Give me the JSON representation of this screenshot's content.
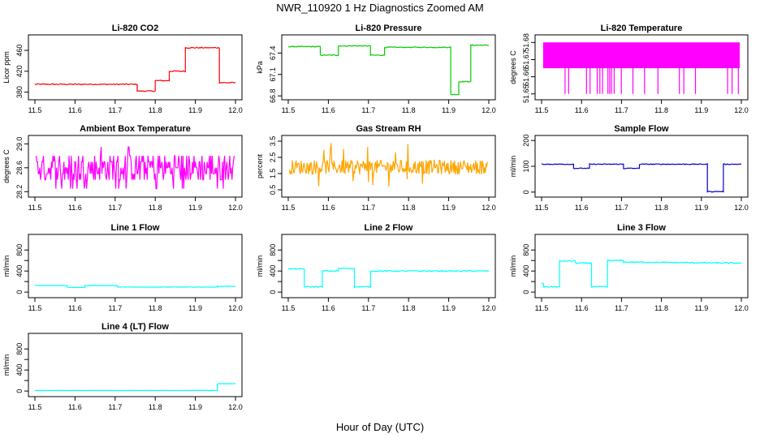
{
  "figure": {
    "title": "NWR_110920  1 Hz Diagnostics Zoomed AM",
    "xlabel": "Hour of Day (UTC)"
  },
  "chart_data": [
    {
      "type": "line",
      "title": "Li-820 CO2",
      "ylabel": "Licor ppm",
      "xlim": [
        11.5,
        12.0
      ],
      "ylim": [
        370,
        485
      ],
      "x_ticks": [
        11.5,
        11.6,
        11.7,
        11.8,
        11.9,
        12.0
      ],
      "x_tick_labels": [
        "11.5",
        "11.6",
        "11.7",
        "11.8",
        "11.9",
        "12.0"
      ],
      "y_ticks": [
        380,
        420,
        460
      ],
      "y_tick_labels": [
        "380",
        "420",
        "460"
      ],
      "color": "#ff0000",
      "noise": 1.0,
      "series": [
        {
          "x": [
            11.5,
            11.755,
            11.755,
            11.8,
            11.8,
            11.835,
            11.835,
            11.875,
            11.875,
            11.96,
            11.96,
            12.0
          ],
          "y": [
            395,
            395,
            382,
            382,
            402,
            402,
            420,
            420,
            465,
            465,
            398,
            398
          ]
        }
      ]
    },
    {
      "type": "line",
      "title": "Li-820 Pressure",
      "ylabel": "kPa",
      "xlim": [
        11.5,
        12.0
      ],
      "ylim": [
        66.78,
        67.62
      ],
      "x_ticks": [
        11.5,
        11.6,
        11.7,
        11.8,
        11.9,
        12.0
      ],
      "x_tick_labels": [
        "11.5",
        "11.6",
        "11.7",
        "11.8",
        "11.9",
        "12.0"
      ],
      "y_ticks": [
        66.8,
        67.1,
        67.4
      ],
      "y_tick_labels": [
        "66.8",
        "67.1",
        "67.4"
      ],
      "color": "#00cc00",
      "noise": 0.006,
      "series": [
        {
          "x": [
            11.5,
            11.58,
            11.58,
            11.625,
            11.625,
            11.705,
            11.705,
            11.74,
            11.74,
            11.905,
            11.905,
            11.925,
            11.925,
            11.955,
            11.955,
            12.0
          ],
          "y": [
            67.49,
            67.49,
            67.37,
            67.37,
            67.5,
            67.5,
            67.37,
            67.37,
            67.48,
            67.48,
            66.82,
            66.82,
            67.0,
            67.0,
            67.51,
            67.51
          ]
        }
      ]
    },
    {
      "type": "line",
      "title": "Li-820 Temperature",
      "ylabel": "degrees C",
      "xlim": [
        11.5,
        12.0
      ],
      "ylim": [
        51.648,
        51.683
      ],
      "x_ticks": [
        11.5,
        11.6,
        11.7,
        11.8,
        11.9,
        12.0
      ],
      "x_tick_labels": [
        "11.5",
        "11.6",
        "11.7",
        "11.8",
        "11.9",
        "12.0"
      ],
      "y_ticks": [
        51.65,
        51.66,
        51.67,
        51.68
      ],
      "y_tick_labels": [
        "51.65",
        "51.66",
        "51.67",
        "51.68"
      ],
      "color": "#ff00ff",
      "series": [
        {
          "x": [
            11.5,
            12.0
          ],
          "y": [
            51.67,
            51.67
          ]
        }
      ]
    },
    {
      "type": "line",
      "title": "Ambient Box Temperature",
      "ylabel": "degrees C",
      "xlim": [
        11.5,
        12.0
      ],
      "ylim": [
        28.15,
        29.1
      ],
      "x_ticks": [
        11.5,
        11.6,
        11.7,
        11.8,
        11.9,
        12.0
      ],
      "x_tick_labels": [
        "11.5",
        "11.6",
        "11.7",
        "11.8",
        "11.9",
        "12.0"
      ],
      "y_ticks": [
        28.2,
        28.6,
        29.0
      ],
      "y_tick_labels": [
        "28.2",
        "28.6",
        "29.0"
      ],
      "color": "#ff00ff",
      "series": [
        {
          "x": [
            11.5,
            12.0
          ],
          "y": [
            28.6,
            28.6
          ]
        }
      ]
    },
    {
      "type": "line",
      "title": "Gas Stream RH",
      "ylabel": "percent",
      "xlim": [
        11.5,
        12.0
      ],
      "ylim": [
        0.2,
        3.7
      ],
      "x_ticks": [
        11.5,
        11.6,
        11.7,
        11.8,
        11.9,
        12.0
      ],
      "x_tick_labels": [
        "11.5",
        "11.6",
        "11.7",
        "11.8",
        "11.9",
        "12.0"
      ],
      "y_ticks": [
        0.5,
        1.5,
        2.5,
        3.5
      ],
      "y_tick_labels": [
        "0.5",
        "1.5",
        "2.5",
        "3.5"
      ],
      "color": "#ffa500",
      "series": [
        {
          "x": [
            11.5,
            12.0
          ],
          "y": [
            1.9,
            1.9
          ]
        }
      ]
    },
    {
      "type": "line",
      "title": "Sample Flow",
      "ylabel": "ml/min",
      "xlim": [
        11.5,
        12.0
      ],
      "ylim": [
        -10,
        210
      ],
      "x_ticks": [
        11.5,
        11.6,
        11.7,
        11.8,
        11.9,
        12.0
      ],
      "x_tick_labels": [
        "11.5",
        "11.6",
        "11.7",
        "11.8",
        "11.9",
        "12.0"
      ],
      "y_ticks": [
        0,
        100,
        200
      ],
      "y_tick_labels": [
        "0",
        "100",
        "200"
      ],
      "color": "#0000cc",
      "noise": 1.5,
      "series": [
        {
          "x": [
            11.5,
            11.58,
            11.58,
            11.62,
            11.62,
            11.705,
            11.705,
            11.745,
            11.745,
            11.915,
            11.915,
            11.955,
            11.955,
            12.0
          ],
          "y": [
            108,
            108,
            92,
            92,
            108,
            108,
            92,
            92,
            108,
            108,
            2,
            2,
            108,
            108
          ]
        }
      ]
    },
    {
      "type": "line",
      "title": "Line 1 Flow",
      "ylabel": "ml/min",
      "xlim": [
        11.5,
        12.0
      ],
      "ylim": [
        -60,
        1050
      ],
      "x_ticks": [
        11.5,
        11.6,
        11.7,
        11.8,
        11.9,
        12.0
      ],
      "x_tick_labels": [
        "11.5",
        "11.6",
        "11.7",
        "11.8",
        "11.9",
        "12.0"
      ],
      "y_ticks": [
        0,
        400,
        800
      ],
      "y_tick_labels": [
        "0",
        "400",
        "800"
      ],
      "y_ticks_minor": [
        200,
        600
      ],
      "y_tick_labels_minor": [
        "200",
        "600"
      ],
      "color": "#00ffff",
      "noise": 3,
      "series": [
        {
          "x": [
            11.5,
            11.58,
            11.58,
            11.625,
            11.625,
            11.705,
            11.705,
            11.955,
            11.955,
            12.0
          ],
          "y": [
            125,
            125,
            90,
            90,
            125,
            125,
            95,
            95,
            110,
            110
          ]
        }
      ]
    },
    {
      "type": "line",
      "title": "Line 2 Flow",
      "ylabel": "ml/min",
      "xlim": [
        11.5,
        12.0
      ],
      "ylim": [
        -60,
        1050
      ],
      "x_ticks": [
        11.5,
        11.6,
        11.7,
        11.8,
        11.9,
        12.0
      ],
      "x_tick_labels": [
        "11.5",
        "11.6",
        "11.7",
        "11.8",
        "11.9",
        "12.0"
      ],
      "y_ticks": [
        0,
        400,
        800
      ],
      "y_tick_labels": [
        "0",
        "400",
        "800"
      ],
      "y_ticks_minor": [
        200,
        600
      ],
      "y_tick_labels_minor": [
        "200",
        "600"
      ],
      "color": "#00ffff",
      "noise": 10,
      "series": [
        {
          "x": [
            11.5,
            11.54,
            11.54,
            11.585,
            11.585,
            11.625,
            11.625,
            11.665,
            11.665,
            11.705,
            11.705,
            12.0
          ],
          "y": [
            440,
            440,
            100,
            100,
            400,
            400,
            450,
            450,
            100,
            100,
            400,
            400
          ]
        }
      ]
    },
    {
      "type": "line",
      "title": "Line 3 Flow",
      "ylabel": "ml/min",
      "xlim": [
        11.5,
        12.0
      ],
      "ylim": [
        -60,
        1050
      ],
      "x_ticks": [
        11.5,
        11.6,
        11.7,
        11.8,
        11.9,
        12.0
      ],
      "x_tick_labels": [
        "11.5",
        "11.6",
        "11.7",
        "11.8",
        "11.9",
        "12.0"
      ],
      "y_ticks": [
        0,
        400,
        800
      ],
      "y_tick_labels": [
        "0",
        "400",
        "800"
      ],
      "y_ticks_minor": [
        200,
        600
      ],
      "y_tick_labels_minor": [
        "200",
        "600"
      ],
      "color": "#00ffff",
      "noise": 12,
      "series": [
        {
          "x": [
            11.5,
            11.505,
            11.505,
            11.545,
            11.545,
            11.585,
            11.585,
            11.625,
            11.625,
            11.665,
            11.665,
            11.705,
            11.705,
            12.0
          ],
          "y": [
            160,
            160,
            100,
            100,
            590,
            590,
            550,
            550,
            100,
            100,
            600,
            600,
            570,
            550
          ]
        }
      ]
    },
    {
      "type": "line",
      "title": "Line 4 (LT) Flow",
      "ylabel": "ml/min",
      "xlim": [
        11.5,
        12.0
      ],
      "ylim": [
        -60,
        1050
      ],
      "x_ticks": [
        11.5,
        11.6,
        11.7,
        11.8,
        11.9,
        12.0
      ],
      "x_tick_labels": [
        "11.5",
        "11.6",
        "11.7",
        "11.8",
        "11.9",
        "12.0"
      ],
      "y_ticks": [
        0,
        400,
        800
      ],
      "y_tick_labels": [
        "0",
        "400",
        "800"
      ],
      "y_ticks_minor": [
        200,
        600
      ],
      "y_tick_labels_minor": [
        "200",
        "600"
      ],
      "color": "#00ffff",
      "noise": 2,
      "series": [
        {
          "x": [
            11.5,
            11.955,
            11.955,
            12.0
          ],
          "y": [
            10,
            10,
            140,
            140
          ]
        }
      ]
    }
  ]
}
